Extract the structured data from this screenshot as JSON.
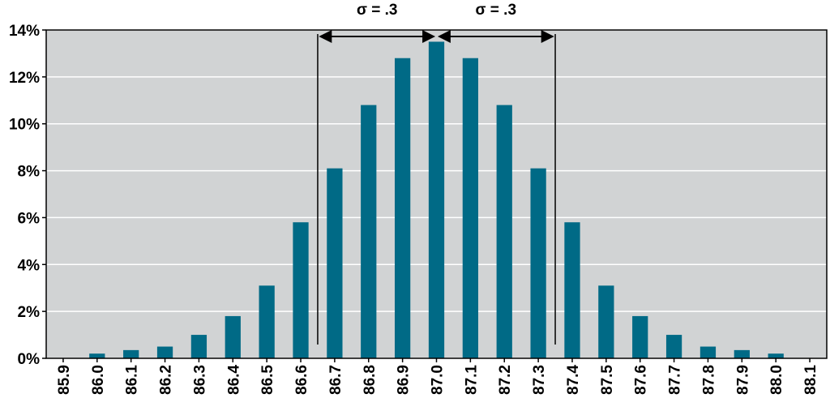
{
  "chart_data": {
    "type": "bar",
    "categories": [
      "85.9",
      "86.0",
      "86.1",
      "86.2",
      "86.3",
      "86.4",
      "86.5",
      "86.6",
      "86.7",
      "86.8",
      "86.9",
      "87.0",
      "87.1",
      "87.2",
      "87.3",
      "87.4",
      "87.5",
      "87.6",
      "87.7",
      "87.8",
      "87.9",
      "88.0",
      "88.1"
    ],
    "values": [
      0,
      0.2,
      0.35,
      0.5,
      1.0,
      1.8,
      3.1,
      5.8,
      8.1,
      10.8,
      12.8,
      13.5,
      12.8,
      10.8,
      8.1,
      5.8,
      3.1,
      1.8,
      1.0,
      0.5,
      0.35,
      0.2,
      0
    ],
    "color": "#006a86",
    "ylim": [
      0,
      14
    ],
    "yticks": [
      {
        "value": 0,
        "label": "0%"
      },
      {
        "value": 2,
        "label": "2%"
      },
      {
        "value": 4,
        "label": "4%"
      },
      {
        "value": 6,
        "label": "6%"
      },
      {
        "value": 8,
        "label": "8%"
      },
      {
        "value": 10,
        "label": "10%"
      },
      {
        "value": 12,
        "label": "12%"
      },
      {
        "value": 14,
        "label": "14%"
      }
    ],
    "grid": true,
    "annotations": [
      "σ = .3",
      "σ = .3"
    ]
  }
}
